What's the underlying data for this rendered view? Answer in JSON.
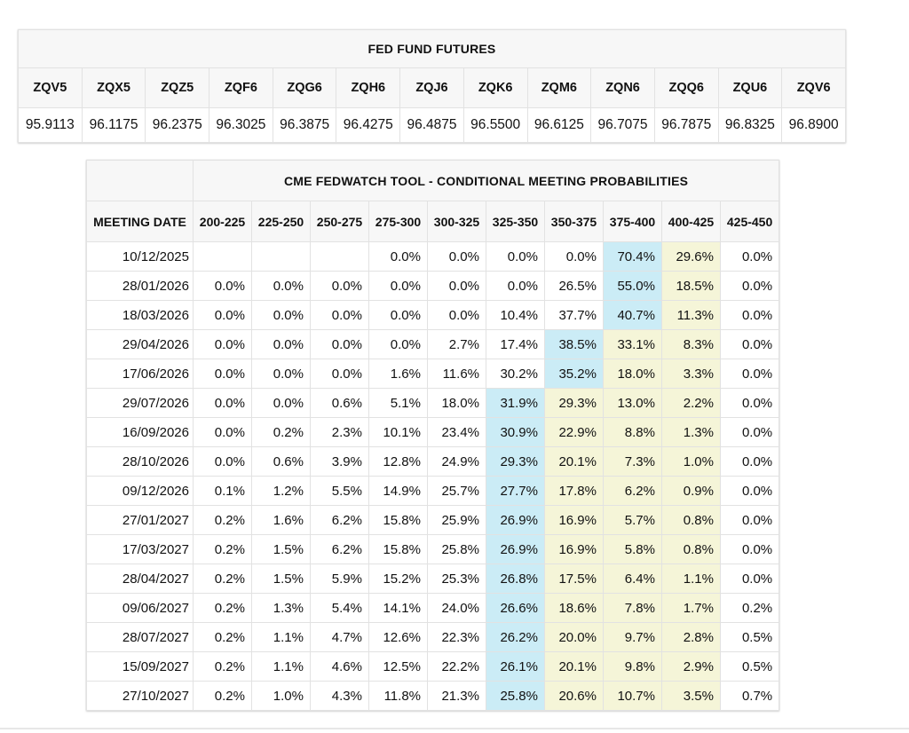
{
  "colors": {
    "highlight_blue": "#cbecf6",
    "highlight_yellow": "#f5f5d8",
    "header_bg": "#f7f7f7",
    "border": "#e2e2e2"
  },
  "futures_table": {
    "title": "FED FUND FUTURES",
    "contracts": [
      "ZQV5",
      "ZQX5",
      "ZQZ5",
      "ZQF6",
      "ZQG6",
      "ZQH6",
      "ZQJ6",
      "ZQK6",
      "ZQM6",
      "ZQN6",
      "ZQQ6",
      "ZQU6",
      "ZQV6"
    ],
    "prices": [
      "95.9113",
      "96.1175",
      "96.2375",
      "96.3025",
      "96.3875",
      "96.4275",
      "96.4875",
      "96.5500",
      "96.6125",
      "96.7075",
      "96.7875",
      "96.8325",
      "96.8900"
    ]
  },
  "fedwatch_table": {
    "title": "CME FEDWATCH TOOL - CONDITIONAL MEETING PROBABILITIES",
    "date_header": "MEETING DATE",
    "rate_headers": [
      "200-225",
      "225-250",
      "250-275",
      "275-300",
      "300-325",
      "325-350",
      "350-375",
      "375-400",
      "400-425",
      "425-450"
    ],
    "rows": [
      {
        "date": "10/12/2025",
        "values": [
          "",
          "",
          "",
          "0.0%",
          "0.0%",
          "0.0%",
          "0.0%",
          "70.4%",
          "29.6%",
          "0.0%"
        ],
        "highlights": [
          "",
          "",
          "",
          "",
          "",
          "",
          "",
          "blue",
          "yellow",
          ""
        ]
      },
      {
        "date": "28/01/2026",
        "values": [
          "0.0%",
          "0.0%",
          "0.0%",
          "0.0%",
          "0.0%",
          "0.0%",
          "26.5%",
          "55.0%",
          "18.5%",
          "0.0%"
        ],
        "highlights": [
          "",
          "",
          "",
          "",
          "",
          "",
          "",
          "blue",
          "yellow",
          ""
        ]
      },
      {
        "date": "18/03/2026",
        "values": [
          "0.0%",
          "0.0%",
          "0.0%",
          "0.0%",
          "0.0%",
          "10.4%",
          "37.7%",
          "40.7%",
          "11.3%",
          "0.0%"
        ],
        "highlights": [
          "",
          "",
          "",
          "",
          "",
          "",
          "",
          "blue",
          "yellow",
          ""
        ]
      },
      {
        "date": "29/04/2026",
        "values": [
          "0.0%",
          "0.0%",
          "0.0%",
          "0.0%",
          "2.7%",
          "17.4%",
          "38.5%",
          "33.1%",
          "8.3%",
          "0.0%"
        ],
        "highlights": [
          "",
          "",
          "",
          "",
          "",
          "",
          "blue",
          "yellow",
          "yellow",
          ""
        ]
      },
      {
        "date": "17/06/2026",
        "values": [
          "0.0%",
          "0.0%",
          "0.0%",
          "1.6%",
          "11.6%",
          "30.2%",
          "35.2%",
          "18.0%",
          "3.3%",
          "0.0%"
        ],
        "highlights": [
          "",
          "",
          "",
          "",
          "",
          "",
          "blue",
          "yellow",
          "yellow",
          ""
        ]
      },
      {
        "date": "29/07/2026",
        "values": [
          "0.0%",
          "0.0%",
          "0.6%",
          "5.1%",
          "18.0%",
          "31.9%",
          "29.3%",
          "13.0%",
          "2.2%",
          "0.0%"
        ],
        "highlights": [
          "",
          "",
          "",
          "",
          "",
          "blue",
          "yellow",
          "yellow",
          "yellow",
          ""
        ]
      },
      {
        "date": "16/09/2026",
        "values": [
          "0.0%",
          "0.2%",
          "2.3%",
          "10.1%",
          "23.4%",
          "30.9%",
          "22.9%",
          "8.8%",
          "1.3%",
          "0.0%"
        ],
        "highlights": [
          "",
          "",
          "",
          "",
          "",
          "blue",
          "yellow",
          "yellow",
          "yellow",
          ""
        ]
      },
      {
        "date": "28/10/2026",
        "values": [
          "0.0%",
          "0.6%",
          "3.9%",
          "12.8%",
          "24.9%",
          "29.3%",
          "20.1%",
          "7.3%",
          "1.0%",
          "0.0%"
        ],
        "highlights": [
          "",
          "",
          "",
          "",
          "",
          "blue",
          "yellow",
          "yellow",
          "yellow",
          ""
        ]
      },
      {
        "date": "09/12/2026",
        "values": [
          "0.1%",
          "1.2%",
          "5.5%",
          "14.9%",
          "25.7%",
          "27.7%",
          "17.8%",
          "6.2%",
          "0.9%",
          "0.0%"
        ],
        "highlights": [
          "",
          "",
          "",
          "",
          "",
          "blue",
          "yellow",
          "yellow",
          "yellow",
          ""
        ]
      },
      {
        "date": "27/01/2027",
        "values": [
          "0.2%",
          "1.6%",
          "6.2%",
          "15.8%",
          "25.9%",
          "26.9%",
          "16.9%",
          "5.7%",
          "0.8%",
          "0.0%"
        ],
        "highlights": [
          "",
          "",
          "",
          "",
          "",
          "blue",
          "yellow",
          "yellow",
          "yellow",
          ""
        ]
      },
      {
        "date": "17/03/2027",
        "values": [
          "0.2%",
          "1.5%",
          "6.2%",
          "15.8%",
          "25.8%",
          "26.9%",
          "16.9%",
          "5.8%",
          "0.8%",
          "0.0%"
        ],
        "highlights": [
          "",
          "",
          "",
          "",
          "",
          "blue",
          "yellow",
          "yellow",
          "yellow",
          ""
        ]
      },
      {
        "date": "28/04/2027",
        "values": [
          "0.2%",
          "1.5%",
          "5.9%",
          "15.2%",
          "25.3%",
          "26.8%",
          "17.5%",
          "6.4%",
          "1.1%",
          "0.0%"
        ],
        "highlights": [
          "",
          "",
          "",
          "",
          "",
          "blue",
          "yellow",
          "yellow",
          "yellow",
          ""
        ]
      },
      {
        "date": "09/06/2027",
        "values": [
          "0.2%",
          "1.3%",
          "5.4%",
          "14.1%",
          "24.0%",
          "26.6%",
          "18.6%",
          "7.8%",
          "1.7%",
          "0.2%"
        ],
        "highlights": [
          "",
          "",
          "",
          "",
          "",
          "blue",
          "yellow",
          "yellow",
          "yellow",
          ""
        ]
      },
      {
        "date": "28/07/2027",
        "values": [
          "0.2%",
          "1.1%",
          "4.7%",
          "12.6%",
          "22.3%",
          "26.2%",
          "20.0%",
          "9.7%",
          "2.8%",
          "0.5%"
        ],
        "highlights": [
          "",
          "",
          "",
          "",
          "",
          "blue",
          "yellow",
          "yellow",
          "yellow",
          ""
        ]
      },
      {
        "date": "15/09/2027",
        "values": [
          "0.2%",
          "1.1%",
          "4.6%",
          "12.5%",
          "22.2%",
          "26.1%",
          "20.1%",
          "9.8%",
          "2.9%",
          "0.5%"
        ],
        "highlights": [
          "",
          "",
          "",
          "",
          "",
          "blue",
          "yellow",
          "yellow",
          "yellow",
          ""
        ]
      },
      {
        "date": "27/10/2027",
        "values": [
          "0.2%",
          "1.0%",
          "4.3%",
          "11.8%",
          "21.3%",
          "25.8%",
          "20.6%",
          "10.7%",
          "3.5%",
          "0.7%"
        ],
        "highlights": [
          "",
          "",
          "",
          "",
          "",
          "blue",
          "yellow",
          "yellow",
          "yellow",
          ""
        ]
      }
    ]
  }
}
